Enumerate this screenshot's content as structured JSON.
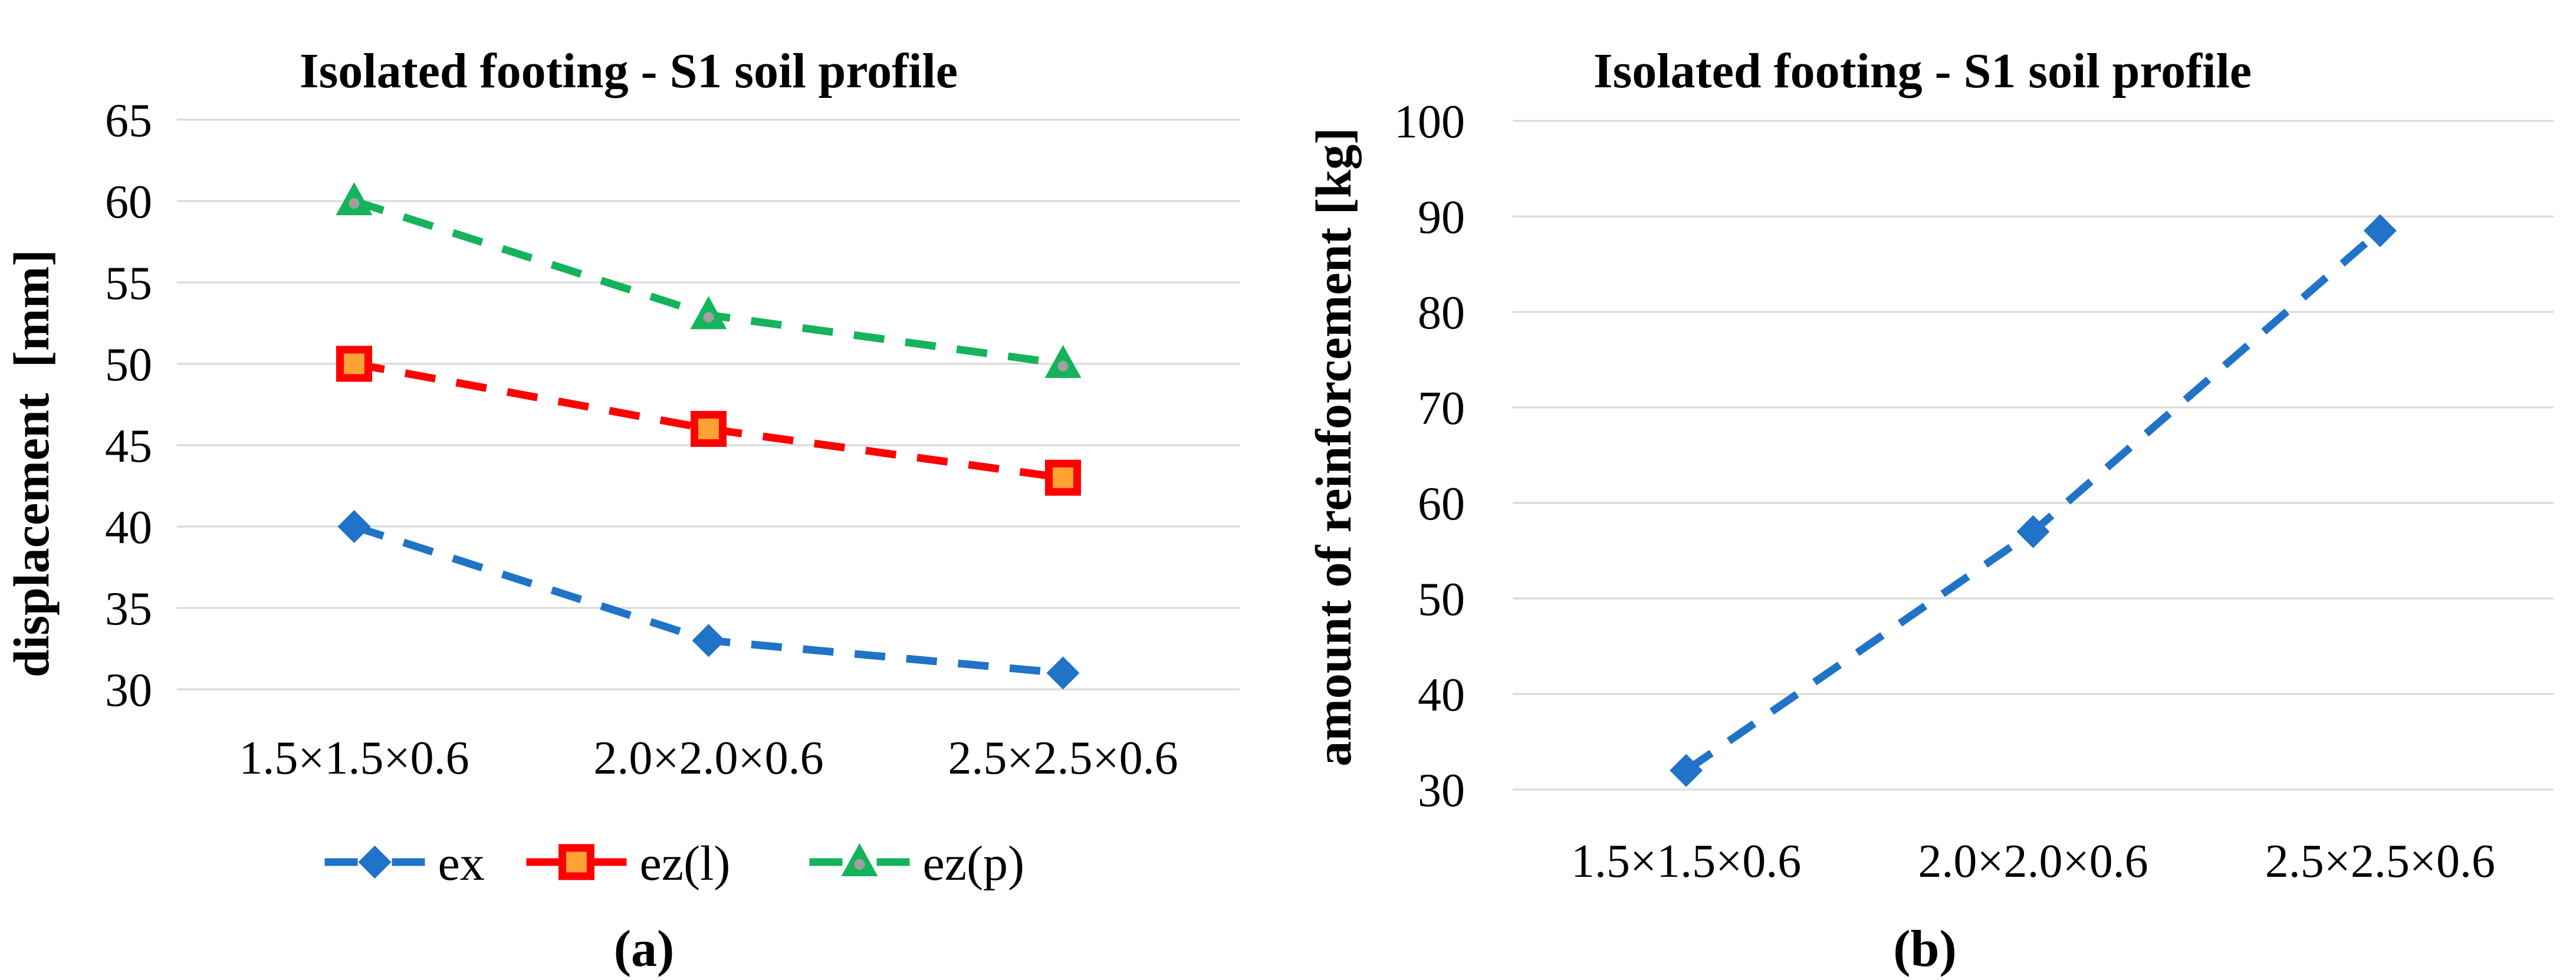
{
  "figure_background": "#FFFFFF",
  "gridline_color": "#D8D8D8",
  "text_color": "#000000",
  "chart_data": [
    {
      "type": "line",
      "panel_label": "(a)",
      "title": "Isolated footing - S1 soil profile",
      "ylabel": "displacement  [mm]",
      "xlabel": "",
      "categories": [
        "1.5×1.5×0.6",
        "2.0×2.0×0.6",
        "2.5×2.5×0.6"
      ],
      "ylim": [
        30,
        65
      ],
      "yticks": [
        65,
        60,
        55,
        50,
        45,
        40,
        35,
        30
      ],
      "grid": "horizontal-only",
      "line_style": "dashed",
      "legend_position": "bottom",
      "series": [
        {
          "name": "ex",
          "values": [
            40,
            33,
            31
          ],
          "color": "#2073C6",
          "marker": "diamond",
          "marker_fill": "#2073C6"
        },
        {
          "name": "ez(l)",
          "values": [
            50,
            46,
            43
          ],
          "color": "#FF0000",
          "marker": "square",
          "marker_fill": "#FFA233"
        },
        {
          "name": "ez(p)",
          "values": [
            60,
            53,
            50
          ],
          "color": "#14B35C",
          "marker": "triangle",
          "marker_fill": "#A0A0A0"
        }
      ]
    },
    {
      "type": "line",
      "panel_label": "(b)",
      "title": "Isolated footing - S1 soil profile",
      "ylabel": "amount of reinforcement [kg]",
      "xlabel": "",
      "categories": [
        "1.5×1.5×0.6",
        "2.0×2.0×0.6",
        "2.5×2.5×0.6"
      ],
      "ylim": [
        30,
        100
      ],
      "yticks": [
        100,
        90,
        80,
        70,
        60,
        50,
        40,
        30
      ],
      "grid": "horizontal-only",
      "line_style": "dashed",
      "legend_position": "none",
      "series": [
        {
          "name": "amount of reinforcement",
          "values": [
            32,
            57,
            88.5
          ],
          "color": "#2073C6",
          "marker": "diamond",
          "marker_fill": "#2073C6"
        }
      ]
    }
  ]
}
